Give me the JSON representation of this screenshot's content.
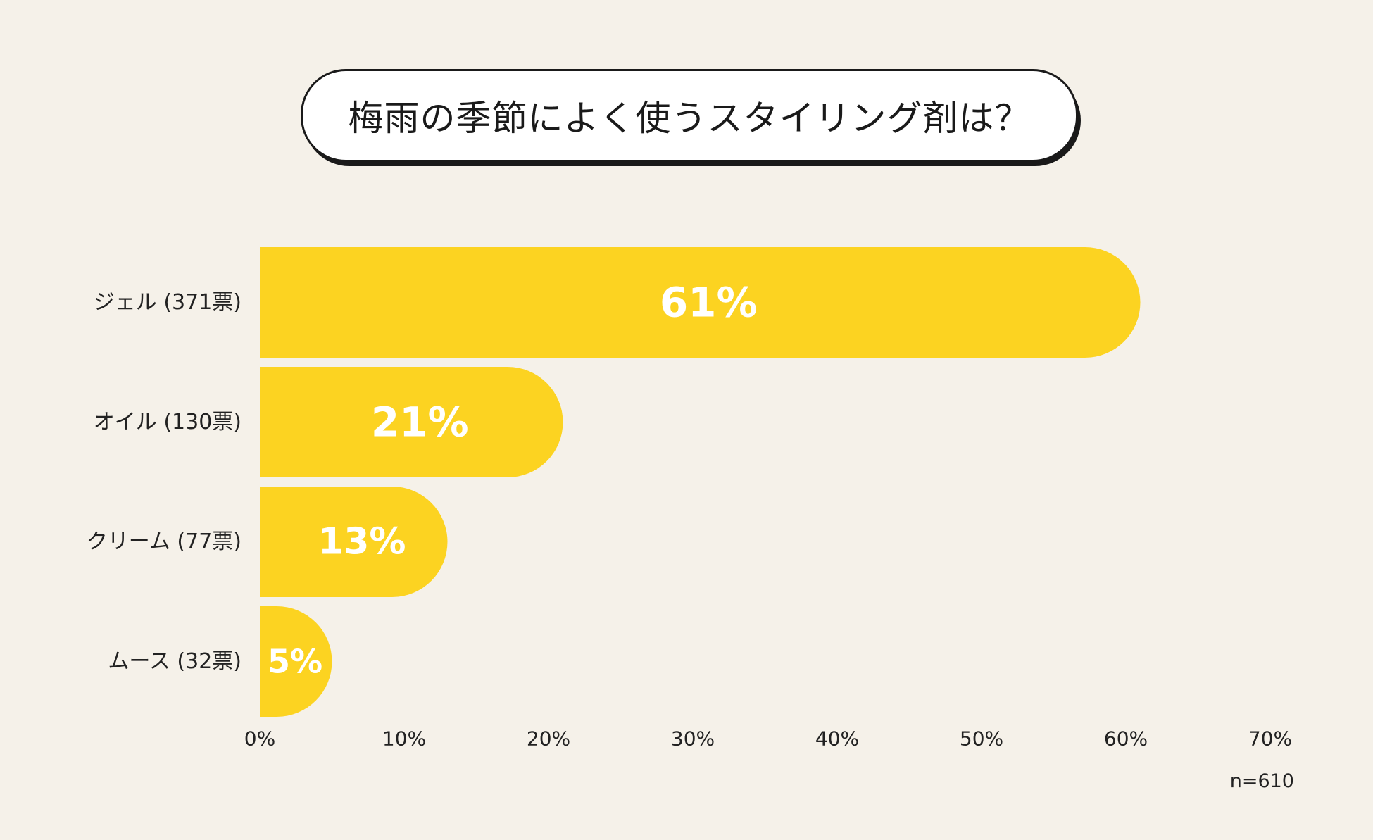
{
  "chart_data": {
    "type": "bar",
    "orientation": "horizontal",
    "title": "梅雨の季節によく使うスタイリング剤は？",
    "categories": [
      "ジェル (371票)",
      "オイル (130票)",
      "クリーム (77票)",
      "ムース (32票)"
    ],
    "values": [
      61,
      21,
      13,
      5
    ],
    "value_labels": [
      "61%",
      "21%",
      "13%",
      "5%"
    ],
    "xlim": [
      0,
      70
    ],
    "xticks": [
      0,
      10,
      20,
      30,
      40,
      50,
      60,
      70
    ],
    "xtick_labels": [
      "0%",
      "10%",
      "20%",
      "30%",
      "40%",
      "50%",
      "60%",
      "70%"
    ],
    "grid": false,
    "legend": "none",
    "note": "n=610",
    "colors": {
      "bar": "#fcd321",
      "background": "#f5f1e9",
      "value_text": "#ffffff"
    }
  }
}
